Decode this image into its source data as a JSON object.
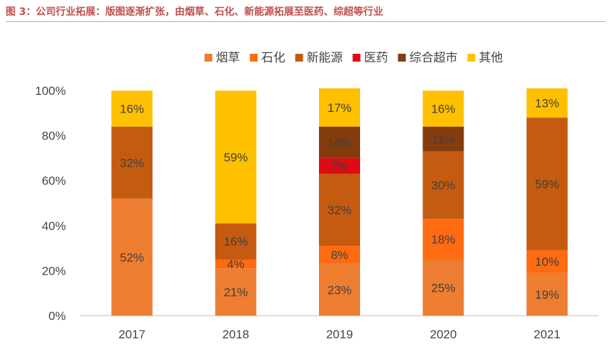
{
  "figure": {
    "title": "图 3：公司行业拓展：版图逐渐扩张，由烟草、石化、新能源拓展至医药、综超等行业"
  },
  "chart_data": {
    "type": "bar",
    "stacked": true,
    "categories": [
      "2017",
      "2018",
      "2019",
      "2020",
      "2021"
    ],
    "ylim": [
      0,
      100
    ],
    "yticks": [
      "0%",
      "20%",
      "40%",
      "60%",
      "80%",
      "100%"
    ],
    "legend_position": "top-center",
    "series": [
      {
        "name": "烟草",
        "color": "#ed7d31",
        "values": [
          52,
          21,
          23,
          25,
          19
        ],
        "labels": [
          "52%",
          "21%",
          "23%",
          "25%",
          "19%"
        ]
      },
      {
        "name": "石化",
        "color": "#fe6b10",
        "values": [
          0,
          4,
          8,
          18,
          10
        ],
        "labels": [
          "",
          "4%",
          "8%",
          "18%",
          "10%"
        ]
      },
      {
        "name": "新能源",
        "color": "#c55a11",
        "values": [
          32,
          16,
          32,
          30,
          59
        ],
        "labels": [
          "32%",
          "16%",
          "32%",
          "30%",
          "59%"
        ]
      },
      {
        "name": "医药",
        "color": "#e00a14",
        "values": [
          0,
          0,
          7,
          0,
          0
        ],
        "labels": [
          "",
          "",
          "7%",
          "",
          ""
        ]
      },
      {
        "name": "综合超市",
        "color": "#843c0c",
        "values": [
          0,
          0,
          14,
          11,
          0
        ],
        "labels": [
          "",
          "",
          "14%",
          "11%",
          ""
        ]
      },
      {
        "name": "其他",
        "color": "#ffc000",
        "values": [
          16,
          59,
          17,
          16,
          13
        ],
        "labels": [
          "16%",
          "59%",
          "17%",
          "16%",
          "13%"
        ]
      }
    ]
  }
}
